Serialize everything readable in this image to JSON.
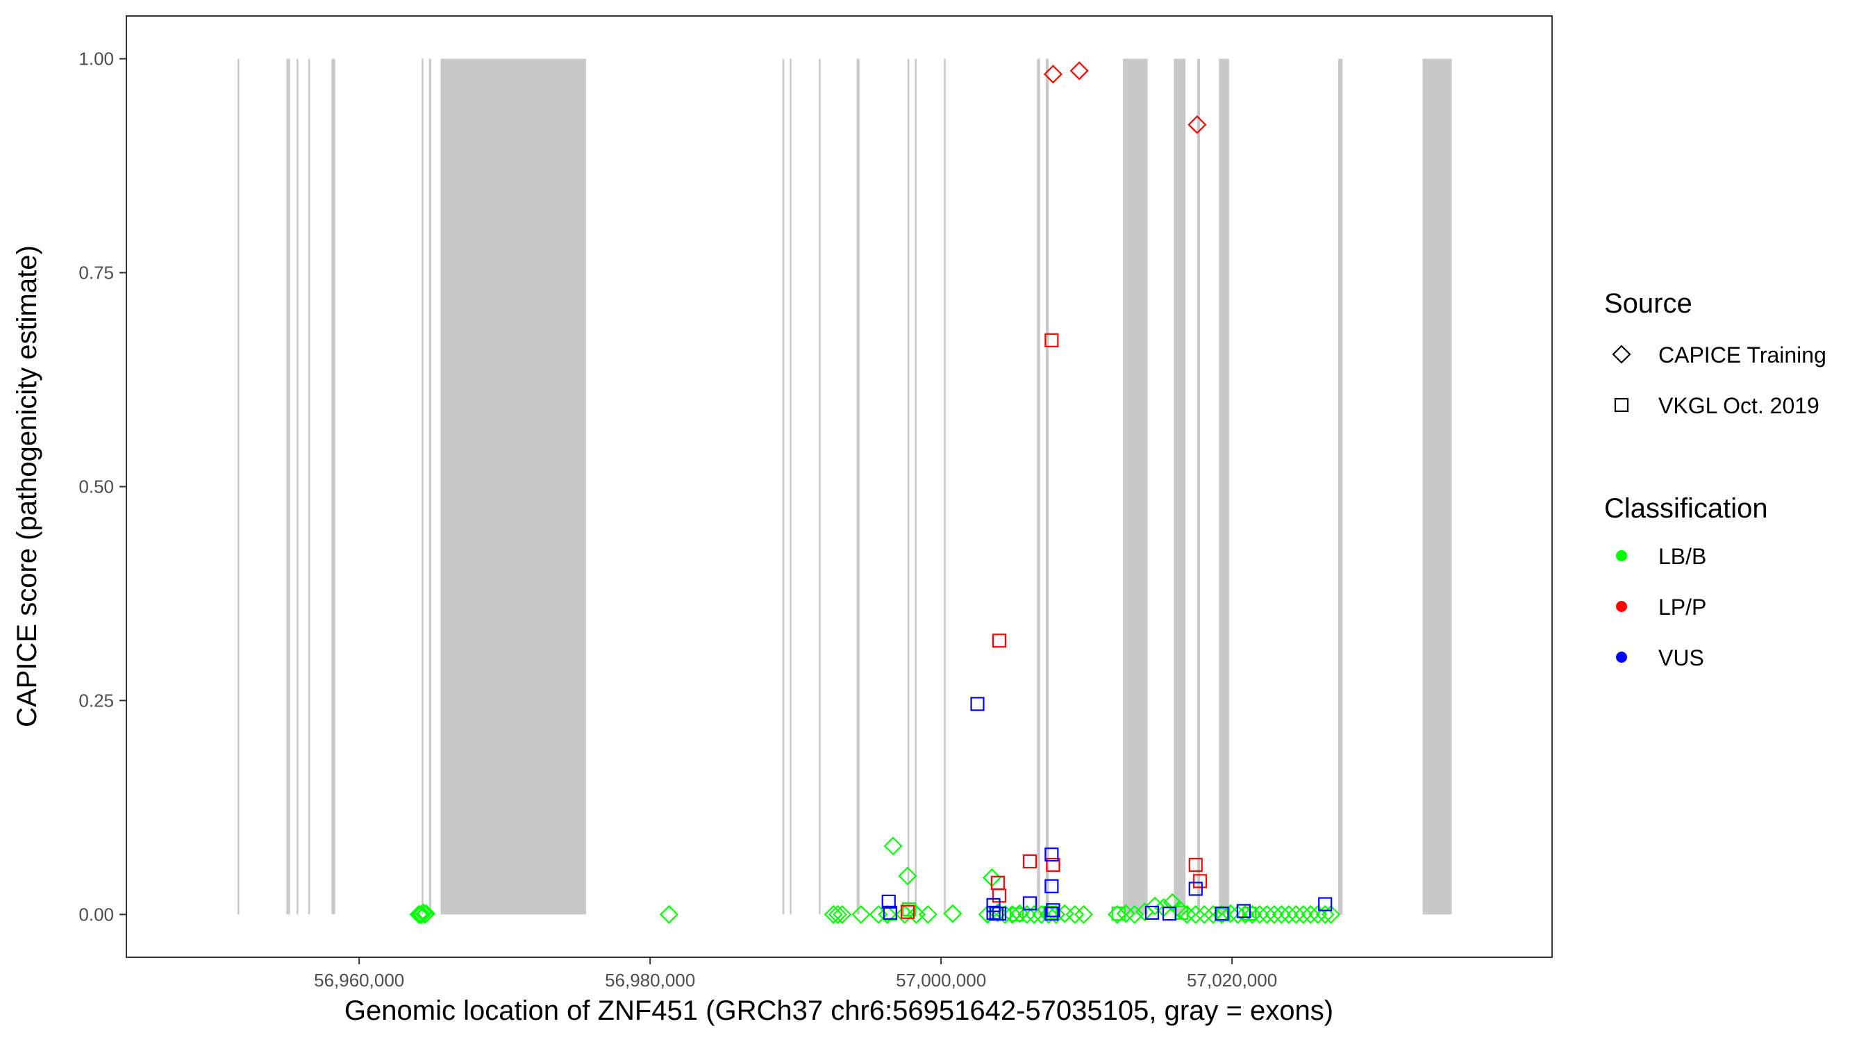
{
  "chart_data": {
    "type": "scatter",
    "title": "",
    "xlabel": "Genomic location of ZNF451 (GRCh37 chr6:56951642-57035105, gray = exons)",
    "ylabel": "CAPICE score (pathogenicity estimate)",
    "xlim": [
      56944000,
      57042000
    ],
    "ylim": [
      -0.05,
      1.05
    ],
    "x_ticks": [
      56960000,
      56980000,
      57000000,
      57020000
    ],
    "x_tick_labels": [
      "56,960,000",
      "56,980,000",
      "57,000,000",
      "57,020,000"
    ],
    "y_ticks": [
      0,
      0.25,
      0.5,
      0.75,
      1.0
    ],
    "y_tick_labels": [
      "0.00",
      "0.25",
      "0.50",
      "0.75",
      "1.00"
    ],
    "grid": false,
    "exon_color": "#c8c8c8",
    "exons": [
      [
        56951642,
        56951700
      ],
      [
        56955000,
        56955250
      ],
      [
        56955700,
        56955800
      ],
      [
        56956500,
        56956600
      ],
      [
        56958100,
        56958350
      ],
      [
        56964300,
        56964400
      ],
      [
        56964800,
        56964950
      ],
      [
        56965600,
        56975600
      ],
      [
        56989100,
        56989200
      ],
      [
        56989600,
        56989700
      ],
      [
        56991600,
        56991700
      ],
      [
        56994200,
        56994400
      ],
      [
        56997700,
        56997800
      ],
      [
        56998200,
        56998300
      ],
      [
        57000200,
        57000300
      ],
      [
        57006600,
        57006800
      ],
      [
        57007200,
        57007400
      ],
      [
        57012500,
        57014200
      ],
      [
        57016000,
        57016800
      ],
      [
        57017600,
        57017800
      ],
      [
        57019100,
        57019800
      ],
      [
        57027300,
        57027600
      ],
      [
        57033100,
        57035105
      ]
    ],
    "legend": {
      "placement": "right",
      "source_title": "Source",
      "source_items": [
        {
          "label": "CAPICE Training",
          "shape": "diamond"
        },
        {
          "label": "VKGL Oct. 2019",
          "shape": "square"
        }
      ],
      "class_title": "Classification",
      "class_items": [
        {
          "label": "LB/B",
          "color": "#00ff00"
        },
        {
          "label": "LP/P",
          "color": "#ff0000"
        },
        {
          "label": "VUS",
          "color": "#0000ff"
        }
      ]
    },
    "series": [
      {
        "source": "CAPICE Training",
        "classification": "LB/B",
        "shape": "diamond",
        "color": "#00ff00",
        "points": [
          [
            56964100,
            0
          ],
          [
            56964200,
            0
          ],
          [
            56964300,
            0
          ],
          [
            56964400,
            0.002
          ],
          [
            56964500,
            0
          ],
          [
            56964600,
            0.001
          ],
          [
            56981300,
            0
          ],
          [
            56992600,
            0
          ],
          [
            56992900,
            0
          ],
          [
            56993200,
            0
          ],
          [
            56994500,
            0
          ],
          [
            56995700,
            0
          ],
          [
            56996300,
            0
          ],
          [
            56996700,
            0.08
          ],
          [
            56997700,
            0.045
          ],
          [
            56997500,
            0
          ],
          [
            56998300,
            0
          ],
          [
            56999100,
            0
          ],
          [
            57000800,
            0.001
          ],
          [
            57003200,
            0
          ],
          [
            57003500,
            0.043
          ],
          [
            57003900,
            0.002
          ],
          [
            57004400,
            0
          ],
          [
            57004900,
            0
          ],
          [
            57005400,
            0.001
          ],
          [
            57005900,
            0
          ],
          [
            57006400,
            0
          ],
          [
            57006900,
            0
          ],
          [
            57007400,
            0
          ],
          [
            57007900,
            0
          ],
          [
            57008500,
            0.001
          ],
          [
            57009200,
            0
          ],
          [
            57009800,
            0
          ],
          [
            57012100,
            0
          ],
          [
            57012700,
            0.001
          ],
          [
            57013300,
            0
          ],
          [
            57014000,
            0.003
          ],
          [
            57014700,
            0.01
          ],
          [
            57015300,
            0.008
          ],
          [
            57015900,
            0.014
          ],
          [
            57016400,
            0.006
          ],
          [
            57016900,
            0
          ],
          [
            57017500,
            0
          ],
          [
            57018100,
            0
          ],
          [
            57018700,
            0
          ],
          [
            57019300,
            0
          ],
          [
            57019900,
            0.001
          ],
          [
            57020400,
            0
          ],
          [
            57020900,
            0
          ],
          [
            57021400,
            0
          ],
          [
            57021900,
            0
          ],
          [
            57022400,
            0
          ],
          [
            57022900,
            0
          ],
          [
            57023400,
            0
          ],
          [
            57023900,
            0
          ],
          [
            57024400,
            0
          ],
          [
            57024900,
            0
          ],
          [
            57025400,
            0
          ],
          [
            57025900,
            0
          ],
          [
            57026400,
            0
          ],
          [
            57026800,
            0
          ]
        ]
      },
      {
        "source": "CAPICE Training",
        "classification": "LP/P",
        "shape": "diamond",
        "color": "#ff0000",
        "points": [
          [
            57007700,
            0.982
          ],
          [
            57009500,
            0.986
          ],
          [
            57017600,
            0.923
          ]
        ]
      },
      {
        "source": "VKGL Oct. 2019",
        "classification": "LB/B",
        "shape": "square",
        "color": "#00ff00",
        "points": [
          [
            56996500,
            0.001
          ],
          [
            56997800,
            0.006
          ],
          [
            57003600,
            0.001
          ],
          [
            57005200,
            0
          ],
          [
            57007500,
            0.002
          ],
          [
            57012200,
            0.001
          ],
          [
            57016500,
            0.002
          ],
          [
            57019400,
            0
          ],
          [
            57021200,
            0.001
          ]
        ]
      },
      {
        "source": "VKGL Oct. 2019",
        "classification": "LP/P",
        "shape": "square",
        "color": "#ff0000",
        "points": [
          [
            57007600,
            0.671
          ],
          [
            57004000,
            0.32
          ],
          [
            57006100,
            0.062
          ],
          [
            57007700,
            0.058
          ],
          [
            57003900,
            0.037
          ],
          [
            57004000,
            0.022
          ],
          [
            57017500,
            0.058
          ],
          [
            57017800,
            0.039
          ],
          [
            56997700,
            0.003
          ]
        ]
      },
      {
        "source": "VKGL Oct. 2019",
        "classification": "VUS",
        "shape": "square",
        "color": "#0000ff",
        "points": [
          [
            57002500,
            0.246
          ],
          [
            56996400,
            0.015
          ],
          [
            56996500,
            0.002
          ],
          [
            57003600,
            0.011
          ],
          [
            57003600,
            0.002
          ],
          [
            57003800,
            0.001
          ],
          [
            57004000,
            0.001
          ],
          [
            57006100,
            0.013
          ],
          [
            57007600,
            0.07
          ],
          [
            57007600,
            0.033
          ],
          [
            57007700,
            0.005
          ],
          [
            57007600,
            0.001
          ],
          [
            57014500,
            0.002
          ],
          [
            57015700,
            0.001
          ],
          [
            57017500,
            0.03
          ],
          [
            57019300,
            0.001
          ],
          [
            57020800,
            0.004
          ],
          [
            57026400,
            0.012
          ]
        ]
      }
    ]
  }
}
